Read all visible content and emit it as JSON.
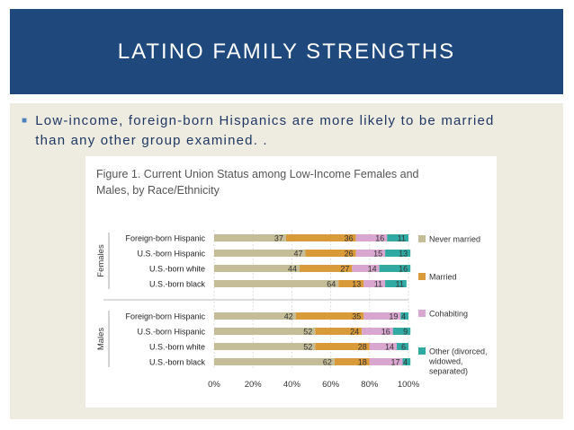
{
  "slide": {
    "title": "LATINO FAMILY STRENGTHS",
    "bullet": "Low-income, foreign-born Hispanics are more likely to be married than any other group examined. ."
  },
  "chart_data": {
    "type": "bar",
    "orientation": "horizontal",
    "stacked": true,
    "title": "Figure 1. Current Union Status among Low-Income Females and Males, by Race/Ethnicity",
    "groups": [
      {
        "name": "Females",
        "categories": [
          "Foreign-born Hispanic",
          "U.S.-born Hispanic",
          "U.S.-born white",
          "U.S.-born black"
        ]
      },
      {
        "name": "Males",
        "categories": [
          "Foreign-born Hispanic",
          "U.S.-born Hispanic",
          "U.S.-born white",
          "U.S.-born black"
        ]
      }
    ],
    "series": [
      {
        "name": "Never married",
        "color": "#c4bd97",
        "values": [
          37,
          47,
          44,
          64,
          42,
          52,
          52,
          62
        ]
      },
      {
        "name": "Married",
        "color": "#d99a3a",
        "values": [
          36,
          26,
          27,
          13,
          35,
          24,
          28,
          18
        ]
      },
      {
        "name": "Cohabiting",
        "color": "#d9a6cf",
        "values": [
          16,
          15,
          14,
          11,
          19,
          16,
          14,
          17
        ]
      },
      {
        "name": "Other (divorced, widowed, separated)",
        "color": "#31aaa4",
        "values": [
          11,
          13,
          16,
          11,
          4,
          9,
          6,
          4
        ]
      }
    ],
    "x_ticks": [
      "0%",
      "20%",
      "40%",
      "60%",
      "80%",
      "100%"
    ],
    "xlim": [
      0,
      100
    ],
    "legend_position": "right"
  }
}
